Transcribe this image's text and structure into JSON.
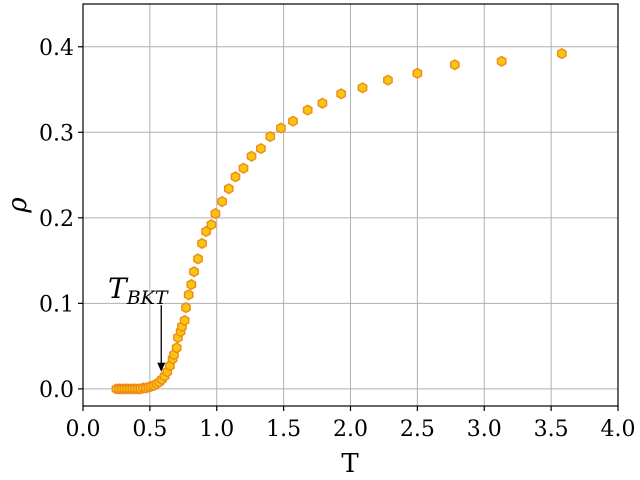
{
  "chart_data": {
    "type": "scatter",
    "xlabel": "T",
    "ylabel": "ρ",
    "xlim": [
      0.0,
      4.0
    ],
    "ylim": [
      -0.02,
      0.45
    ],
    "xticks": [
      "0.0",
      "0.5",
      "1.0",
      "1.5",
      "2.0",
      "2.5",
      "3.0",
      "3.5",
      "4.0"
    ],
    "yticks": [
      "0.0",
      "0.1",
      "0.2",
      "0.3",
      "0.4"
    ],
    "grid": true,
    "marker": "hexagon",
    "series": [
      {
        "color_fill": "#f7c613",
        "color_edge": "#f08a15",
        "points": [
          [
            0.25,
            0.0
          ],
          [
            0.27,
            0.0
          ],
          [
            0.29,
            0.0
          ],
          [
            0.31,
            0.0
          ],
          [
            0.33,
            0.0
          ],
          [
            0.35,
            0.0
          ],
          [
            0.37,
            0.0
          ],
          [
            0.39,
            0.0
          ],
          [
            0.41,
            0.0
          ],
          [
            0.43,
            0.0
          ],
          [
            0.45,
            0.001
          ],
          [
            0.47,
            0.001
          ],
          [
            0.49,
            0.002
          ],
          [
            0.51,
            0.003
          ],
          [
            0.53,
            0.004
          ],
          [
            0.55,
            0.006
          ],
          [
            0.57,
            0.008
          ],
          [
            0.59,
            0.011
          ],
          [
            0.61,
            0.015
          ],
          [
            0.63,
            0.02
          ],
          [
            0.65,
            0.027
          ],
          [
            0.67,
            0.035
          ],
          [
            0.68,
            0.04
          ],
          [
            0.7,
            0.048
          ],
          [
            0.71,
            0.06
          ],
          [
            0.73,
            0.067
          ],
          [
            0.74,
            0.073
          ],
          [
            0.76,
            0.08
          ],
          [
            0.77,
            0.095
          ],
          [
            0.79,
            0.11
          ],
          [
            0.81,
            0.122
          ],
          [
            0.83,
            0.137
          ],
          [
            0.86,
            0.152
          ],
          [
            0.89,
            0.17
          ],
          [
            0.92,
            0.184
          ],
          [
            0.96,
            0.192
          ],
          [
            0.99,
            0.205
          ],
          [
            1.04,
            0.219
          ],
          [
            1.09,
            0.234
          ],
          [
            1.14,
            0.248
          ],
          [
            1.2,
            0.258
          ],
          [
            1.26,
            0.272
          ],
          [
            1.33,
            0.281
          ],
          [
            1.4,
            0.295
          ],
          [
            1.48,
            0.305
          ],
          [
            1.57,
            0.313
          ],
          [
            1.68,
            0.326
          ],
          [
            1.79,
            0.334
          ],
          [
            1.93,
            0.345
          ],
          [
            2.09,
            0.352
          ],
          [
            2.28,
            0.361
          ],
          [
            2.5,
            0.369
          ],
          [
            2.78,
            0.379
          ],
          [
            3.13,
            0.383
          ],
          [
            3.58,
            0.392
          ]
        ]
      }
    ],
    "annotations": [
      {
        "text": "T",
        "subscript": "BKT",
        "arrow_from": [
          0.585,
          0.098
        ],
        "arrow_to": [
          0.585,
          0.02
        ]
      }
    ]
  }
}
